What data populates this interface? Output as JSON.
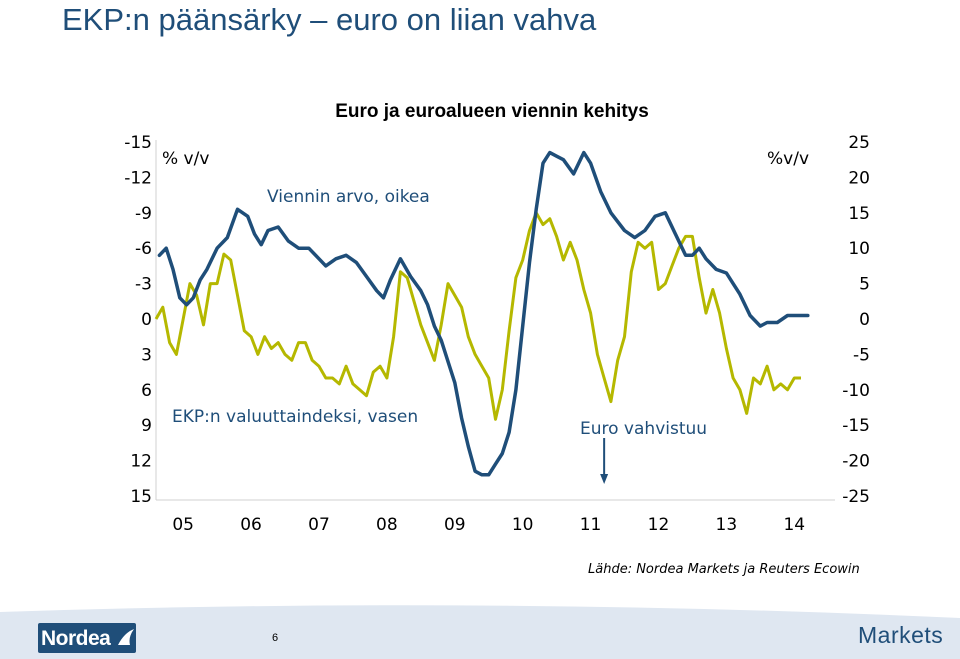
{
  "slide": {
    "title": "EKP:n päänsärky – euro on liian vahva",
    "source": "Lähde: Nordea Markets ja Reuters Ecowin",
    "page_number": "6",
    "brand": "Nordea",
    "markets_label": "Markets"
  },
  "colors": {
    "title": "#1f4e79",
    "series_export": "#1f4e79",
    "series_ecb": "#b5b800",
    "footer_band": "#dfe7f1",
    "logo_bg": "#1f4e79"
  },
  "chart_data": {
    "type": "line",
    "title": "Euro ja euroalueen viennin kehitys",
    "annotations": {
      "left_unit": "% v/v",
      "right_unit": "%v/v",
      "event_label": "Euro vahvistuu",
      "event_arrow": "down",
      "event_x": 2011.2
    },
    "x_axis": {
      "ticks": [
        "05",
        "06",
        "07",
        "08",
        "09",
        "10",
        "11",
        "12",
        "13",
        "14"
      ],
      "range": [
        2004.6,
        2014.6
      ]
    },
    "y_left": {
      "ticks": [
        "-15",
        "-12",
        "-9",
        "-6",
        "-3",
        "0",
        "3",
        "6",
        "9",
        "12",
        "15"
      ],
      "range": [
        -15,
        15
      ],
      "inverted": true
    },
    "y_right": {
      "ticks": [
        "25",
        "20",
        "15",
        "10",
        "5",
        "0",
        "-5",
        "-10",
        "-15",
        "-20",
        "-25"
      ],
      "range": [
        -25,
        25
      ]
    },
    "series": [
      {
        "name": "Viennin arvo, oikea",
        "axis": "right",
        "x": [
          2004.65,
          2004.75,
          2004.85,
          2004.95,
          2005.05,
          2005.15,
          2005.25,
          2005.35,
          2005.5,
          2005.65,
          2005.8,
          2005.95,
          2006.05,
          2006.15,
          2006.25,
          2006.4,
          2006.55,
          2006.7,
          2006.85,
          2007.0,
          2007.1,
          2007.25,
          2007.4,
          2007.55,
          2007.7,
          2007.85,
          2007.95,
          2008.05,
          2008.2,
          2008.35,
          2008.5,
          2008.6,
          2008.7,
          2008.8,
          2008.9,
          2009.0,
          2009.1,
          2009.2,
          2009.3,
          2009.4,
          2009.5,
          2009.6,
          2009.7,
          2009.8,
          2009.9,
          2010.0,
          2010.1,
          2010.2,
          2010.3,
          2010.4,
          2010.5,
          2010.6,
          2010.75,
          2010.9,
          2011.0,
          2011.15,
          2011.3,
          2011.5,
          2011.65,
          2011.8,
          2011.95,
          2012.1,
          2012.25,
          2012.4,
          2012.5,
          2012.6,
          2012.7,
          2012.85,
          2013.0,
          2013.1,
          2013.2,
          2013.35,
          2013.5,
          2013.6,
          2013.75,
          2013.9,
          2014.0,
          2014.1,
          2014.2
        ],
        "y": [
          9,
          10,
          7,
          3,
          2,
          3,
          5.5,
          7,
          10,
          11.5,
          15.5,
          14.5,
          12,
          10.5,
          12.5,
          13,
          11,
          10,
          10,
          8.5,
          7.5,
          8.5,
          9,
          8,
          6,
          4,
          3,
          5.5,
          8.5,
          6,
          4,
          2,
          -1,
          -3,
          -6,
          -9,
          -14,
          -18,
          -21.5,
          -22,
          -22,
          -20.5,
          -19,
          -16,
          -10,
          -1,
          8,
          15.5,
          22,
          23.5,
          23,
          22.5,
          20.5,
          23.5,
          22,
          18,
          15,
          12.5,
          11.5,
          12.5,
          14.5,
          15,
          12,
          9,
          9,
          10,
          8.5,
          7,
          6.5,
          5,
          3.5,
          0.5,
          -1,
          -0.5,
          -0.5,
          0.5,
          0.5,
          0.5,
          0.5
        ]
      },
      {
        "name": "EKP:n valuuttaindeksi, vasen",
        "axis": "left",
        "x": [
          2004.6,
          2004.7,
          2004.8,
          2004.9,
          2005.0,
          2005.1,
          2005.2,
          2005.3,
          2005.4,
          2005.5,
          2005.6,
          2005.7,
          2005.8,
          2005.9,
          2006.0,
          2006.1,
          2006.2,
          2006.3,
          2006.4,
          2006.5,
          2006.6,
          2006.7,
          2006.8,
          2006.9,
          2007.0,
          2007.1,
          2007.2,
          2007.3,
          2007.4,
          2007.5,
          2007.6,
          2007.7,
          2007.8,
          2007.9,
          2008.0,
          2008.1,
          2008.2,
          2008.3,
          2008.4,
          2008.5,
          2008.6,
          2008.7,
          2008.8,
          2008.9,
          2009.0,
          2009.1,
          2009.2,
          2009.3,
          2009.4,
          2009.5,
          2009.6,
          2009.7,
          2009.8,
          2009.9,
          2010.0,
          2010.1,
          2010.2,
          2010.3,
          2010.4,
          2010.5,
          2010.6,
          2010.7,
          2010.8,
          2010.9,
          2011.0,
          2011.1,
          2011.2,
          2011.3,
          2011.4,
          2011.5,
          2011.6,
          2011.7,
          2011.8,
          2011.9,
          2012.0,
          2012.1,
          2012.2,
          2012.3,
          2012.4,
          2012.5,
          2012.6,
          2012.7,
          2012.8,
          2012.9,
          2013.0,
          2013.1,
          2013.2,
          2013.3,
          2013.4,
          2013.5,
          2013.6,
          2013.7,
          2013.8,
          2013.9,
          2014.0,
          2014.1
        ],
        "y": [
          0,
          -1,
          2,
          3,
          0,
          -3,
          -2,
          0.5,
          -3,
          -3,
          -5.5,
          -5,
          -2,
          1,
          1.5,
          3,
          1.5,
          2.5,
          2,
          3,
          3.5,
          2,
          2,
          3.5,
          4,
          5,
          5,
          5.5,
          4,
          5.5,
          6,
          6.5,
          4.5,
          4,
          5,
          1.5,
          -4,
          -3.5,
          -1.5,
          0.5,
          2,
          3.5,
          0.5,
          -3,
          -2,
          -1,
          1.5,
          3,
          4,
          5,
          8.5,
          6,
          1,
          -3.5,
          -5,
          -7.5,
          -9,
          -8,
          -8.5,
          -7,
          -5,
          -6.5,
          -5,
          -2.5,
          -0.5,
          3,
          5,
          7,
          3.5,
          1.5,
          -4,
          -6.5,
          -6,
          -6.5,
          -2.5,
          -3,
          -4.5,
          -6,
          -7,
          -7,
          -3.5,
          -0.5,
          -2.5,
          -0.5,
          2.5,
          5,
          6,
          8,
          5,
          5.5,
          4,
          6,
          5.5,
          6,
          5,
          5
        ]
      }
    ]
  }
}
